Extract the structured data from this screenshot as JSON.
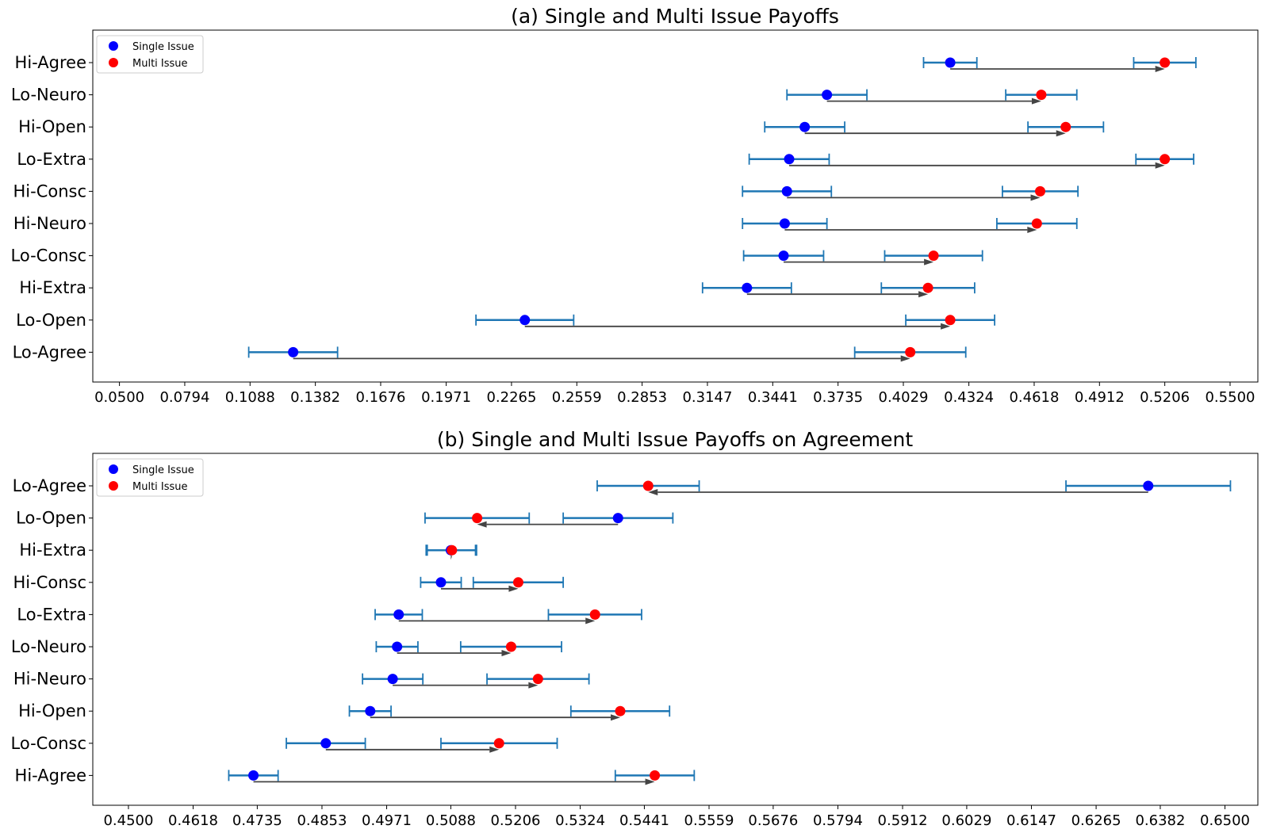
{
  "colors": {
    "single": "#0000ff",
    "multi": "#ff0000",
    "errorbar": "#1f77b4",
    "arrow": "#444444"
  },
  "chart_data": [
    {
      "type": "errorbar-dot",
      "title": "(a) Single and Multi Issue Payoffs",
      "xlim": [
        0.038,
        0.5625
      ],
      "xticks": [
        "0.0500",
        "0.0794",
        "0.1088",
        "0.1382",
        "0.1676",
        "0.1971",
        "0.2265",
        "0.2559",
        "0.2853",
        "0.3147",
        "0.3441",
        "0.3735",
        "0.4029",
        "0.4324",
        "0.4618",
        "0.4912",
        "0.5206",
        "0.5500"
      ],
      "legend": {
        "placement": "upper-left",
        "entries": [
          "Single Issue",
          "Multi Issue"
        ]
      },
      "categories": [
        "Hi-Agree",
        "Lo-Neuro",
        "Hi-Open",
        "Lo-Extra",
        "Hi-Consc",
        "Hi-Neuro",
        "Lo-Consc",
        "Hi-Extra",
        "Lo-Open",
        "Lo-Agree"
      ],
      "single": [
        0.424,
        0.3685,
        0.3585,
        0.3515,
        0.3505,
        0.3495,
        0.349,
        0.3325,
        0.2325,
        0.1282
      ],
      "single_err": [
        0.012,
        0.018,
        0.018,
        0.018,
        0.02,
        0.019,
        0.018,
        0.02,
        0.022,
        0.02
      ],
      "multi": [
        0.5206,
        0.465,
        0.476,
        0.5206,
        0.4645,
        0.463,
        0.4165,
        0.414,
        0.424,
        0.406
      ],
      "multi_err": [
        0.014,
        0.016,
        0.017,
        0.013,
        0.017,
        0.018,
        0.022,
        0.021,
        0.02,
        0.025
      ]
    },
    {
      "type": "errorbar-dot",
      "title": "(b) Single and Multi Issue Payoffs on Agreement",
      "xlim": [
        0.4435,
        0.656
      ],
      "xticks": [
        "0.4500",
        "0.4618",
        "0.4735",
        "0.4853",
        "0.4971",
        "0.5088",
        "0.5206",
        "0.5324",
        "0.5441",
        "0.5559",
        "0.5676",
        "0.5794",
        "0.5912",
        "0.6029",
        "0.6147",
        "0.6265",
        "0.6382",
        "0.6500"
      ],
      "legend": {
        "placement": "upper-left",
        "entries": [
          "Single Issue",
          "Multi Issue"
        ]
      },
      "categories": [
        "Lo-Agree",
        "Lo-Open",
        "Hi-Extra",
        "Hi-Consc",
        "Lo-Extra",
        "Lo-Neuro",
        "Hi-Neuro",
        "Hi-Open",
        "Lo-Consc",
        "Hi-Agree"
      ],
      "single": [
        0.636,
        0.5393,
        0.5088,
        0.507,
        0.4993,
        0.499,
        0.4982,
        0.4941,
        0.486,
        0.4728
      ],
      "single_err": [
        0.015,
        0.01,
        0.0045,
        0.0037,
        0.0043,
        0.0038,
        0.0055,
        0.0038,
        0.0072,
        0.0045
      ],
      "multi": [
        0.5448,
        0.5136,
        0.509,
        0.5211,
        0.5351,
        0.5198,
        0.5247,
        0.5397,
        0.5176,
        0.546
      ],
      "multi_err": [
        0.0093,
        0.0095,
        0.0045,
        0.0082,
        0.0085,
        0.0092,
        0.0093,
        0.009,
        0.0106,
        0.0072
      ]
    }
  ]
}
